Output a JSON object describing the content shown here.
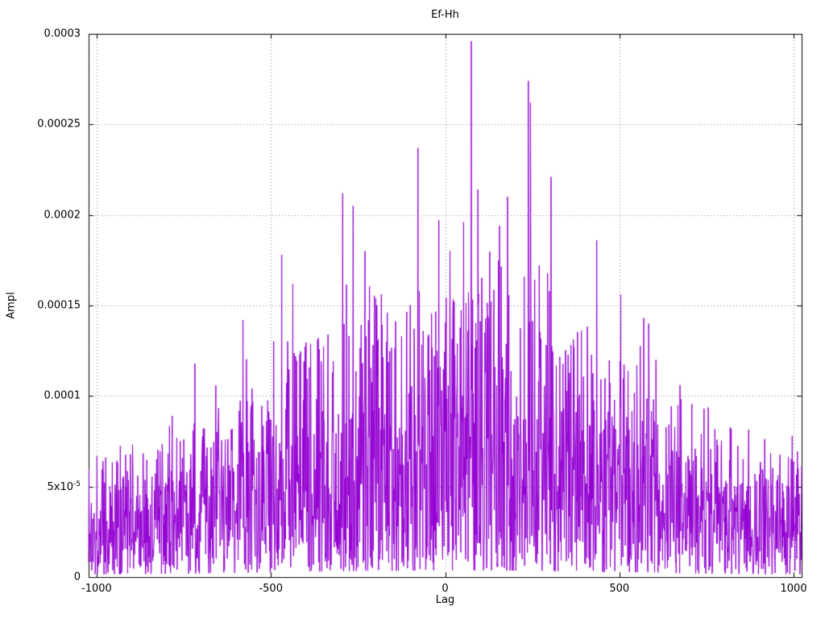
{
  "chart_data": {
    "type": "line",
    "title": "Ef-Hh",
    "xlabel": "Lag",
    "ylabel": "Ampl",
    "xlim": [
      -1023,
      1023
    ],
    "ylim": [
      0,
      0.0003
    ],
    "grid": true,
    "legend": "none",
    "xticks": [
      {
        "value": -1000,
        "label": "-1000"
      },
      {
        "value": -500,
        "label": "-500"
      },
      {
        "value": 0,
        "label": "0"
      },
      {
        "value": 500,
        "label": "500"
      },
      {
        "value": 1000,
        "label": "1000"
      }
    ],
    "yticks": [
      {
        "value": 0,
        "label": "0"
      },
      {
        "value": 5e-05,
        "label": "5x10^-5"
      },
      {
        "value": 0.0001,
        "label": "0.0001"
      },
      {
        "value": 0.00015,
        "label": "0.00015"
      },
      {
        "value": 0.0002,
        "label": "0.0002"
      },
      {
        "value": 0.00025,
        "label": "0.00025"
      },
      {
        "value": 0.0003,
        "label": "0.0003"
      }
    ],
    "line_color": "#9400d3",
    "grid_color": "#878787",
    "border_color": "#000000",
    "background_color": "#ffffff",
    "num_points": 2047,
    "seed": 1337,
    "amplitude_distribution": [
      [
        0.75,
        0.0,
        0.55
      ],
      [
        0.22,
        0.55,
        0.3
      ],
      [
        0.03,
        0.85,
        0.15
      ]
    ],
    "envelope": [
      [
        -1023,
        8e-05
      ],
      [
        -900,
        8e-05
      ],
      [
        -800,
        9e-05
      ],
      [
        -700,
        0.0001
      ],
      [
        -600,
        0.00012
      ],
      [
        -500,
        0.00013
      ],
      [
        -400,
        0.00015
      ],
      [
        -300,
        0.00017
      ],
      [
        -200,
        0.00017
      ],
      [
        -100,
        0.00018
      ],
      [
        0,
        0.00019
      ],
      [
        100,
        0.00019
      ],
      [
        200,
        0.00018
      ],
      [
        300,
        0.00017
      ],
      [
        400,
        0.00015
      ],
      [
        500,
        0.00014
      ],
      [
        600,
        0.00013
      ],
      [
        700,
        0.0001
      ],
      [
        800,
        9e-05
      ],
      [
        900,
        8e-05
      ],
      [
        1023,
        8e-05
      ]
    ],
    "peaks": [
      [
        -718,
        0.000118
      ],
      [
        -580,
        0.000142
      ],
      [
        -469,
        0.000178
      ],
      [
        -437,
        0.000162
      ],
      [
        -294,
        0.000212
      ],
      [
        -264,
        0.000205
      ],
      [
        -230,
        0.00018
      ],
      [
        -78,
        0.000237
      ],
      [
        -18,
        0.000197
      ],
      [
        53,
        0.000196
      ],
      [
        75,
        0.000296
      ],
      [
        94,
        0.000214
      ],
      [
        156,
        0.000194
      ],
      [
        179,
        0.00021
      ],
      [
        239,
        0.000274
      ],
      [
        245,
        0.000262
      ],
      [
        304,
        0.000221
      ],
      [
        435,
        0.000186
      ],
      [
        504,
        0.000156
      ],
      [
        570,
        0.000143
      ],
      [
        584,
        0.00014
      ],
      [
        674,
        0.000106
      ],
      [
        743,
        9.3e-05
      ],
      [
        996,
        7.8e-05
      ]
    ]
  }
}
